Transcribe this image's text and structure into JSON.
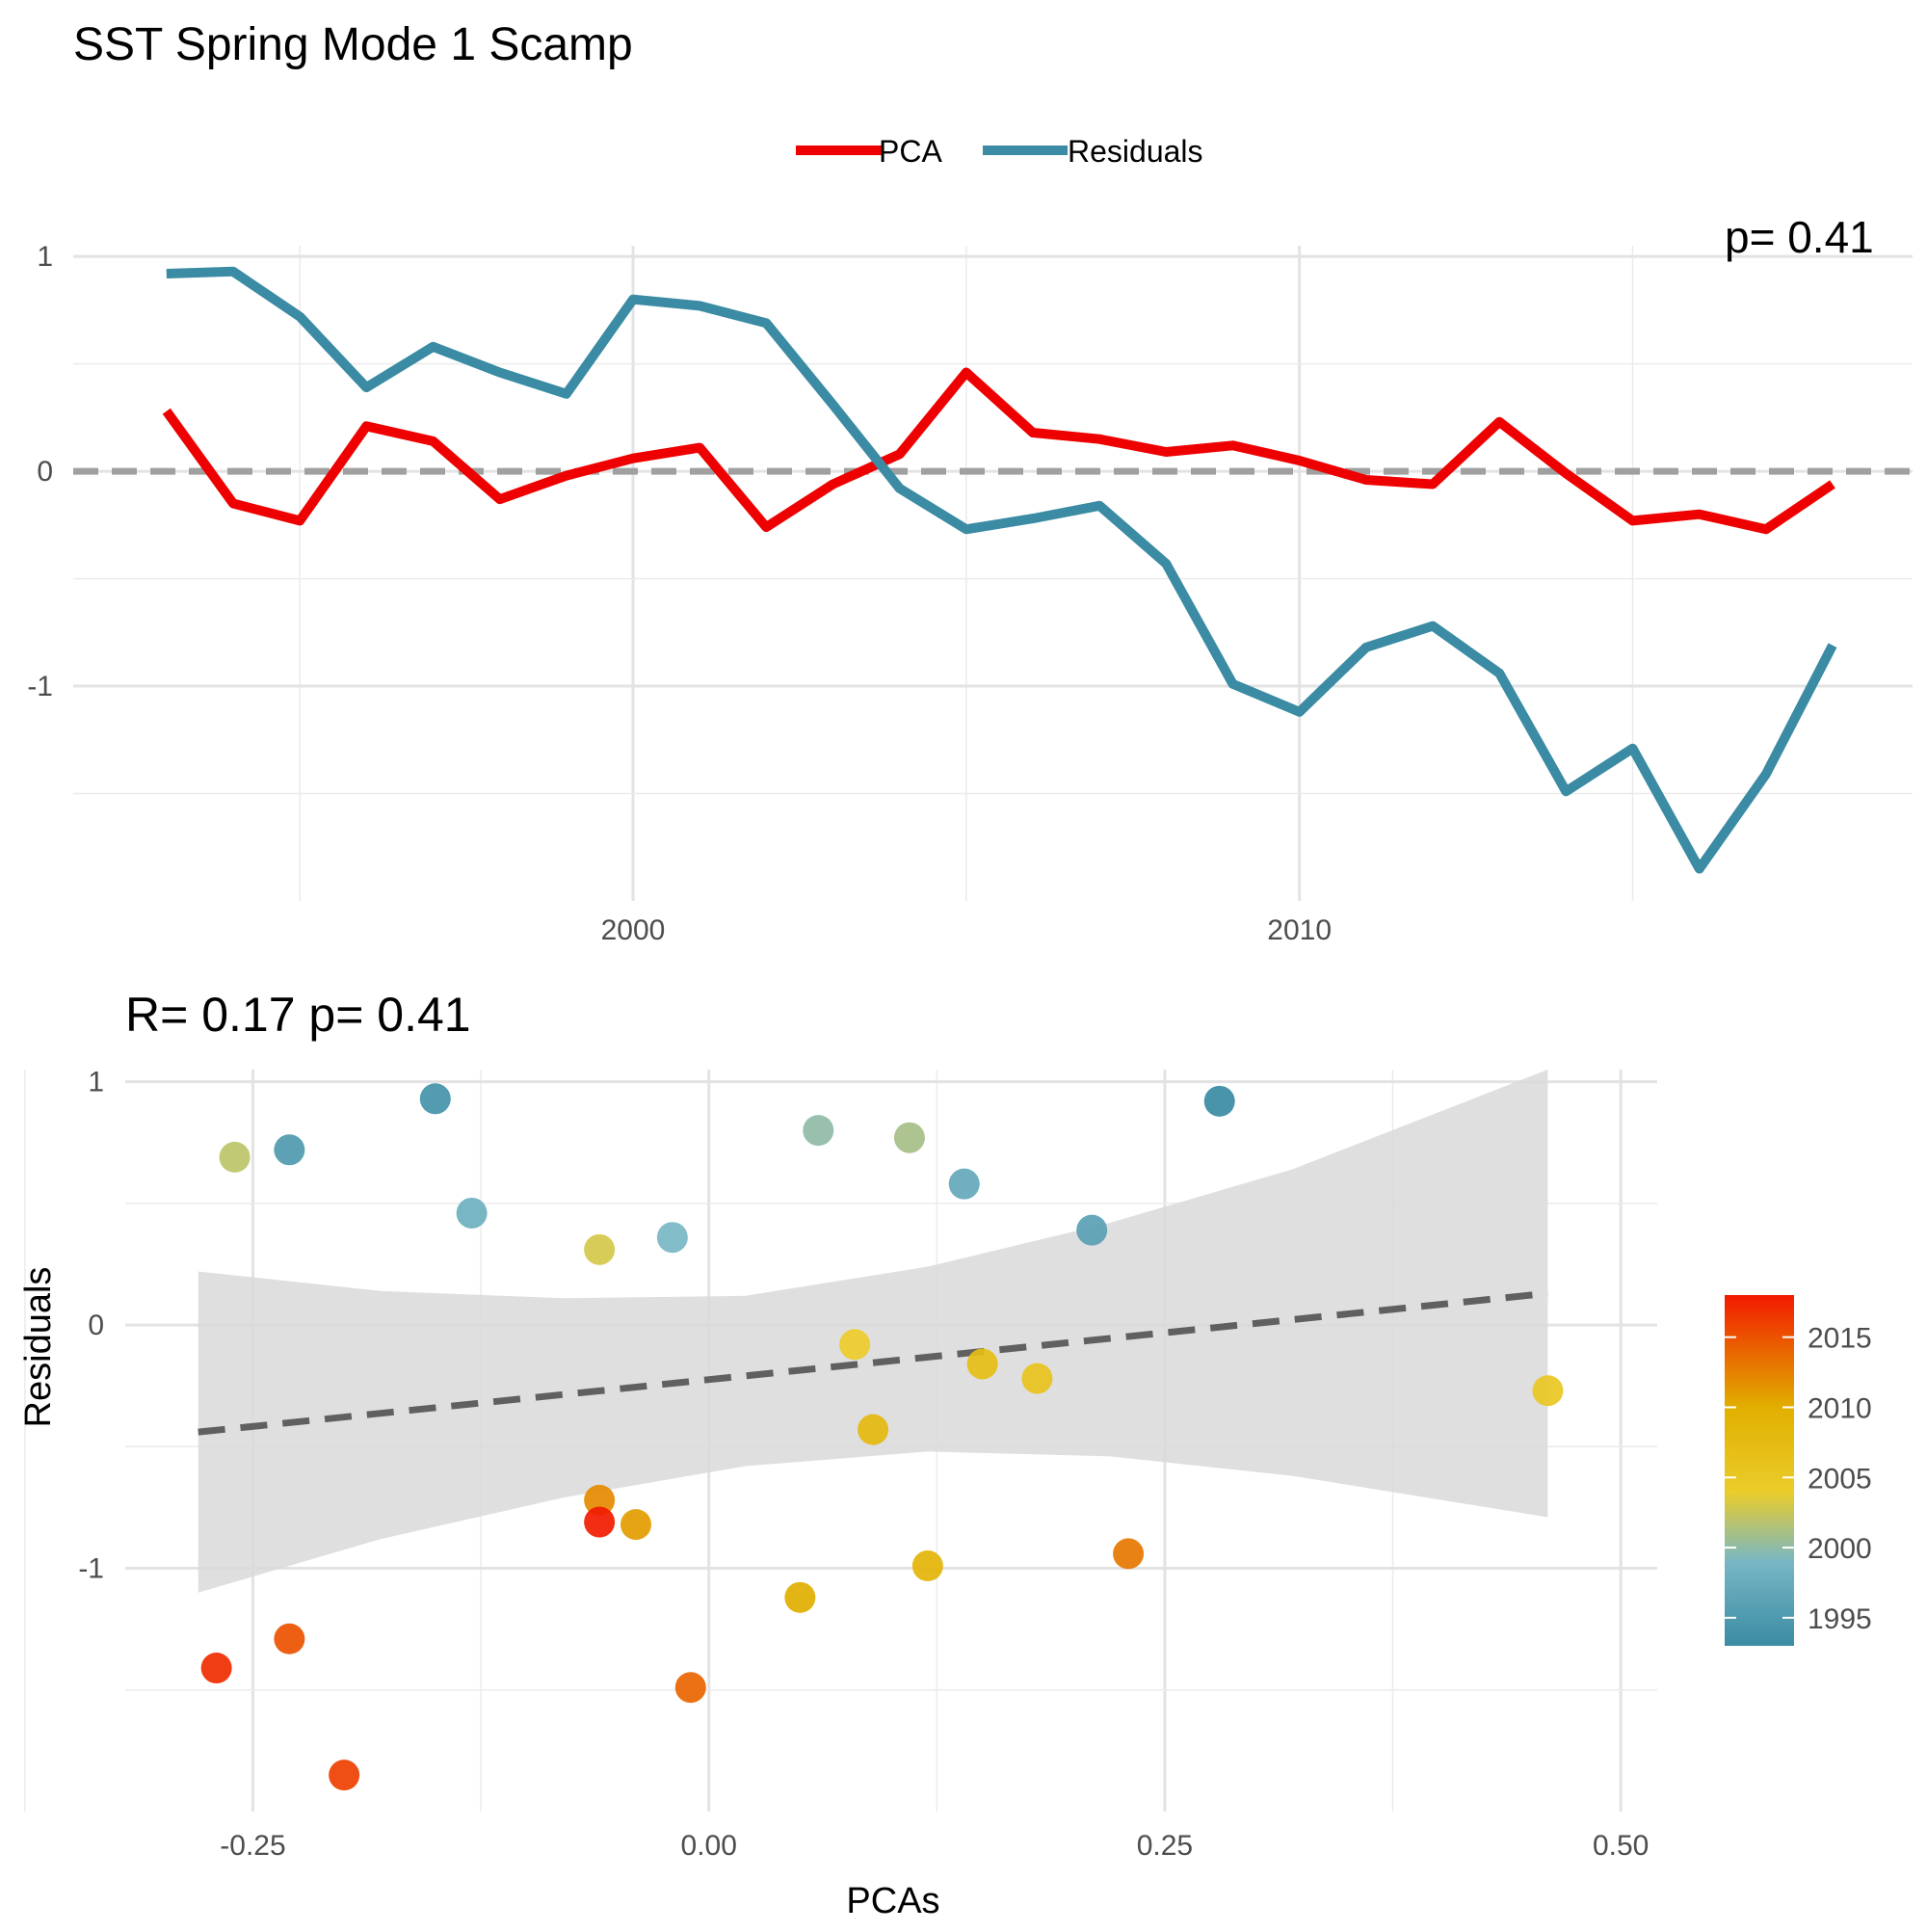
{
  "title": "SST Spring Mode 1 Scamp",
  "legend": {
    "position": "top",
    "items": [
      {
        "label": "PCA",
        "color": "#EE0000"
      },
      {
        "label": "Residuals",
        "color": "#3A8BA3"
      }
    ]
  },
  "chart_data": [
    {
      "type": "line",
      "title": "",
      "xlabel": "",
      "ylabel": "",
      "xlim": [
        1991.6,
        2019.2
      ],
      "ylim": [
        -2.0,
        1.05
      ],
      "x_ticks": [
        2000,
        2010
      ],
      "y_ticks": [
        1,
        0,
        -1
      ],
      "y_tick_labels": [
        "1",
        "0",
        "-1"
      ],
      "reference_line": {
        "y": 0,
        "style": "dashed",
        "color": "#A0A0A0"
      },
      "corner_fragment": "p= 0.41",
      "grid": true,
      "x": [
        1993,
        1994,
        1995,
        1996,
        1997,
        1998,
        1999,
        2000,
        2001,
        2002,
        2003,
        2004,
        2005,
        2006,
        2007,
        2008,
        2009,
        2010,
        2011,
        2012,
        2013,
        2014,
        2015,
        2016,
        2017,
        2018
      ],
      "series": [
        {
          "name": "PCA",
          "color": "#EE0000",
          "values": [
            0.28,
            -0.15,
            -0.23,
            0.21,
            0.14,
            -0.13,
            -0.02,
            0.06,
            0.11,
            -0.26,
            -0.06,
            0.08,
            0.46,
            0.18,
            0.15,
            0.09,
            0.12,
            0.05,
            -0.04,
            -0.06,
            0.23,
            -0.01,
            -0.23,
            -0.2,
            -0.27,
            -0.06
          ]
        },
        {
          "name": "Residuals",
          "color": "#3A8BA3",
          "values": [
            0.92,
            0.93,
            0.72,
            0.39,
            0.58,
            0.46,
            0.36,
            0.8,
            0.77,
            0.69,
            0.31,
            -0.08,
            -0.27,
            -0.22,
            -0.16,
            -0.43,
            -0.99,
            -1.12,
            -0.82,
            -0.72,
            -0.94,
            -1.49,
            -1.29,
            -1.85,
            -1.41,
            -0.81
          ]
        }
      ]
    },
    {
      "type": "scatter",
      "title": "R= 0.17  p= 0.41",
      "xlabel": "PCAs",
      "ylabel": "Residuals",
      "xlim": [
        -0.32,
        0.52
      ],
      "ylim": [
        -2.0,
        1.05
      ],
      "x_ticks": [
        -0.25,
        0.0,
        0.25,
        0.5
      ],
      "x_tick_labels": [
        "-0.25",
        "0.00",
        "0.25",
        "0.50"
      ],
      "y_ticks": [
        1,
        0,
        -1
      ],
      "y_tick_labels": [
        "1",
        "0",
        "-1"
      ],
      "grid": true,
      "fit": {
        "style": "dashed",
        "color": "#606060",
        "x": [
          -0.28,
          0.46
        ],
        "y": [
          -0.44,
          0.13
        ]
      },
      "confidence_band": {
        "x": [
          -0.28,
          -0.18,
          -0.08,
          0.02,
          0.12,
          0.22,
          0.32,
          0.46
        ],
        "upper": [
          0.22,
          0.14,
          0.11,
          0.12,
          0.24,
          0.42,
          0.64,
          1.05
        ],
        "lower": [
          -1.1,
          -0.88,
          -0.71,
          -0.58,
          -0.52,
          -0.54,
          -0.62,
          -0.79
        ],
        "color": "#D9D9D9"
      },
      "colorbar": {
        "ticks": [
          2015,
          2010,
          2005,
          2000,
          1995
        ],
        "tick_labels": [
          "2015",
          "2010",
          "2005",
          "2000",
          "1995"
        ],
        "range": [
          1993,
          2018
        ],
        "stops": [
          {
            "year": 1993,
            "color": "#3A8BA3"
          },
          {
            "year": 1999,
            "color": "#78B7C5"
          },
          {
            "year": 2004,
            "color": "#EBCC2A"
          },
          {
            "year": 2010,
            "color": "#E1AF00"
          },
          {
            "year": 2018,
            "color": "#F21A00"
          }
        ]
      },
      "points": [
        {
          "x": 0.28,
          "y": 0.92,
          "year": 1993
        },
        {
          "x": -0.15,
          "y": 0.93,
          "year": 1994
        },
        {
          "x": -0.23,
          "y": 0.72,
          "year": 1995
        },
        {
          "x": 0.21,
          "y": 0.39,
          "year": 1996
        },
        {
          "x": 0.14,
          "y": 0.58,
          "year": 1997
        },
        {
          "x": -0.13,
          "y": 0.46,
          "year": 1998
        },
        {
          "x": -0.02,
          "y": 0.36,
          "year": 1999
        },
        {
          "x": 0.06,
          "y": 0.8,
          "year": 2000
        },
        {
          "x": 0.11,
          "y": 0.77,
          "year": 2001
        },
        {
          "x": -0.26,
          "y": 0.69,
          "year": 2002
        },
        {
          "x": -0.06,
          "y": 0.31,
          "year": 2003
        },
        {
          "x": 0.08,
          "y": -0.08,
          "year": 2004
        },
        {
          "x": 0.46,
          "y": -0.27,
          "year": 2005
        },
        {
          "x": 0.18,
          "y": -0.22,
          "year": 2006
        },
        {
          "x": 0.15,
          "y": -0.16,
          "year": 2007
        },
        {
          "x": 0.09,
          "y": -0.43,
          "year": 2008
        },
        {
          "x": 0.12,
          "y": -0.99,
          "year": 2009
        },
        {
          "x": 0.05,
          "y": -1.12,
          "year": 2010
        },
        {
          "x": -0.04,
          "y": -0.82,
          "year": 2011
        },
        {
          "x": -0.06,
          "y": -0.72,
          "year": 2012
        },
        {
          "x": 0.23,
          "y": -0.94,
          "year": 2013
        },
        {
          "x": -0.01,
          "y": -1.49,
          "year": 2014
        },
        {
          "x": -0.23,
          "y": -1.29,
          "year": 2015
        },
        {
          "x": -0.2,
          "y": -1.85,
          "year": 2016
        },
        {
          "x": -0.27,
          "y": -1.41,
          "year": 2017
        },
        {
          "x": -0.06,
          "y": -0.81,
          "year": 2018
        }
      ]
    }
  ]
}
